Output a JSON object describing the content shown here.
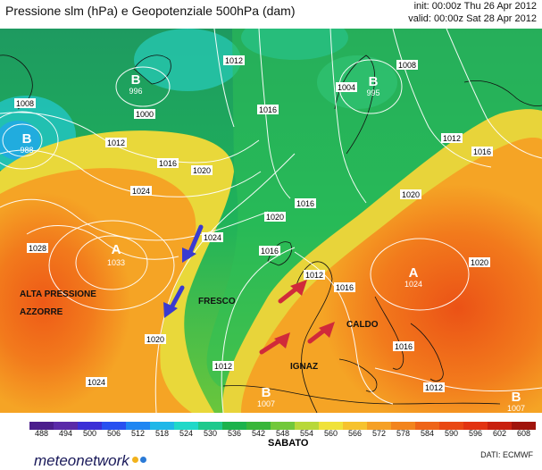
{
  "header": {
    "title": "Pressione slm (hPa) e Geopotenziale 500hPa (dam)",
    "init": "init: 00:00z Thu 26 Apr 2012",
    "valid": "valid: 00:00z Sat 28 Apr 2012"
  },
  "map": {
    "centers": [
      {
        "letter": "A",
        "value": "1033"
      },
      {
        "letter": "A",
        "value": "1024"
      },
      {
        "letter": "B",
        "value": "996"
      },
      {
        "letter": "B",
        "value": "995"
      },
      {
        "letter": "B",
        "value": "988"
      },
      {
        "letter": "B",
        "value": "1007"
      },
      {
        "letter": "B",
        "value": "1007"
      }
    ],
    "isobar_labels": [
      "1008",
      "1012",
      "1016",
      "1020",
      "1024",
      "1028",
      "1004",
      "1000"
    ],
    "region_labels": {
      "azores": "ALTA PRESSIONE AZZORRE",
      "fresco": "FRESCO",
      "caldo": "CALDO",
      "ignaz": "IGNAZ"
    },
    "arrow_colors": {
      "cold": "#3a3ad0",
      "warm": "#d02a3a"
    }
  },
  "colorbar": {
    "labels": [
      "488",
      "494",
      "500",
      "506",
      "512",
      "518",
      "524",
      "530",
      "536",
      "542",
      "548",
      "554",
      "560",
      "566",
      "572",
      "578",
      "584",
      "590",
      "596",
      "602",
      "608"
    ],
    "colors": [
      "#4b1e8c",
      "#5a2aa8",
      "#3b2fd6",
      "#2850f0",
      "#1f86f2",
      "#1fb7e8",
      "#20d8c8",
      "#1ec98c",
      "#1cb24c",
      "#38b63a",
      "#72c83a",
      "#b8d83a",
      "#f0e23a",
      "#f6c22e",
      "#f5a025",
      "#f2841d",
      "#ee6418",
      "#e94814",
      "#e23312",
      "#c8200f",
      "#a0140c"
    ],
    "caption": "SABATO"
  },
  "footer": {
    "brand": "meteonetwork",
    "credit": "DATI: ECMWF"
  }
}
